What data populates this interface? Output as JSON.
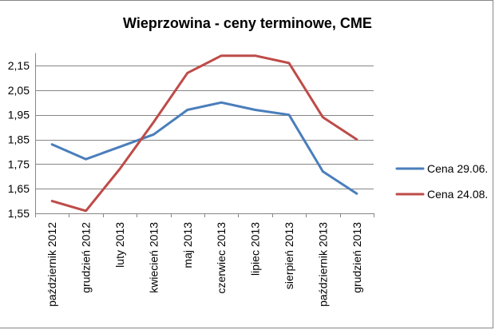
{
  "chart_data": {
    "type": "line",
    "title": "Wieprzowina - ceny terminowe, CME",
    "categories": [
      "październik 2012",
      "grudzień 2012",
      "luty 2013",
      "kwiecień 2013",
      "maj 2013",
      "czerwiec 2013",
      "lipiec 2013",
      "sierpień 2013",
      "październik 2013",
      "grudzień 2013"
    ],
    "series": [
      {
        "name": "Cena 29.06.",
        "color": "#4A7EBB",
        "values": [
          1.83,
          1.77,
          1.82,
          1.87,
          1.97,
          2.0,
          1.97,
          1.95,
          1.72,
          1.63
        ]
      },
      {
        "name": "Cena 24.08.",
        "color": "#BE4B48",
        "values": [
          1.6,
          1.56,
          1.73,
          1.92,
          2.12,
          2.19,
          2.19,
          2.16,
          1.94,
          1.85
        ]
      }
    ],
    "yticks": [
      1.55,
      1.65,
      1.75,
      1.85,
      1.95,
      2.05,
      2.15
    ],
    "ytick_labels": [
      "1,55",
      "1,65",
      "1,75",
      "1,85",
      "1,95",
      "2,05",
      "2,15"
    ],
    "ylim": [
      1.55,
      2.2
    ],
    "grid": true,
    "legend": "right"
  }
}
